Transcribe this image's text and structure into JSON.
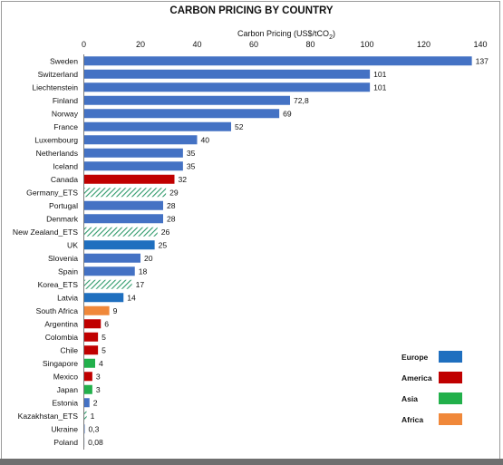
{
  "chart_data": {
    "type": "bar",
    "orientation": "horizontal",
    "title": "CARBON PRICING BY COUNTRY",
    "xlabel_main": "Carbon Pricing (US$/tCO",
    "xlabel_sub": "2",
    "xlabel_close": ")",
    "xlim": [
      0,
      140
    ],
    "xticks": [
      0,
      20,
      40,
      60,
      80,
      100,
      120,
      140
    ],
    "xaxis_position": "top",
    "grid": false,
    "legend_position": "bottom-right",
    "legend": [
      {
        "name": "Europe",
        "color": "#1f6fbf"
      },
      {
        "name": "America",
        "color": "#c00000"
      },
      {
        "name": "Asia",
        "color": "#22b04b"
      },
      {
        "name": "Africa",
        "color": "#f0883a"
      }
    ],
    "colors": {
      "europe_bar": "#4472c4",
      "uk_latvia_bar": "#1f6fbf",
      "america": "#c00000",
      "asia": "#22b04b",
      "africa": "#f0883a",
      "ets_hatch": "#2e9a6a"
    },
    "bars": [
      {
        "category": "Sweden",
        "value": 137,
        "label": "137",
        "group": "europe_bar"
      },
      {
        "category": "Switzerland",
        "value": 101,
        "label": "101",
        "group": "europe_bar"
      },
      {
        "category": "Liechtenstein",
        "value": 101,
        "label": "101",
        "group": "europe_bar"
      },
      {
        "category": "Finland",
        "value": 72.8,
        "label": "72,8",
        "group": "europe_bar"
      },
      {
        "category": "Norway",
        "value": 69,
        "label": "69",
        "group": "europe_bar"
      },
      {
        "category": "France",
        "value": 52,
        "label": "52",
        "group": "europe_bar"
      },
      {
        "category": "Luxembourg",
        "value": 40,
        "label": "40",
        "group": "europe_bar"
      },
      {
        "category": "Netherlands",
        "value": 35,
        "label": "35",
        "group": "europe_bar"
      },
      {
        "category": "Iceland",
        "value": 35,
        "label": "35",
        "group": "europe_bar"
      },
      {
        "category": "Canada",
        "value": 32,
        "label": "32",
        "group": "america"
      },
      {
        "category": "Germany_ETS",
        "value": 29,
        "label": "29",
        "group": "ets_hatch"
      },
      {
        "category": "Portugal",
        "value": 28,
        "label": "28",
        "group": "europe_bar"
      },
      {
        "category": "Denmark",
        "value": 28,
        "label": "28",
        "group": "europe_bar"
      },
      {
        "category": "New Zealand_ETS",
        "value": 26,
        "label": "26",
        "group": "ets_hatch"
      },
      {
        "category": "UK",
        "value": 25,
        "label": "25",
        "group": "uk_latvia_bar"
      },
      {
        "category": "Slovenia",
        "value": 20,
        "label": "20",
        "group": "europe_bar"
      },
      {
        "category": "Spain",
        "value": 18,
        "label": "18",
        "group": "europe_bar"
      },
      {
        "category": "Korea_ETS",
        "value": 17,
        "label": "17",
        "group": "ets_hatch"
      },
      {
        "category": "Latvia",
        "value": 14,
        "label": "14",
        "group": "uk_latvia_bar"
      },
      {
        "category": "South Africa",
        "value": 9,
        "label": "9",
        "group": "africa"
      },
      {
        "category": "Argentina",
        "value": 6,
        "label": "6",
        "group": "america"
      },
      {
        "category": "Colombia",
        "value": 5,
        "label": "5",
        "group": "america"
      },
      {
        "category": "Chile",
        "value": 5,
        "label": "5",
        "group": "america"
      },
      {
        "category": "Singapore",
        "value": 4,
        "label": "4",
        "group": "asia"
      },
      {
        "category": "Mexico",
        "value": 3,
        "label": "3",
        "group": "america"
      },
      {
        "category": "Japan",
        "value": 3,
        "label": "3",
        "group": "asia"
      },
      {
        "category": "Estonia",
        "value": 2,
        "label": "2",
        "group": "europe_bar"
      },
      {
        "category": "Kazakhstan_ETS",
        "value": 1,
        "label": "1",
        "group": "ets_hatch"
      },
      {
        "category": "Ukraine",
        "value": 0.3,
        "label": "0,3",
        "group": "europe_bar"
      },
      {
        "category": "Poland",
        "value": 0.08,
        "label": "0,08",
        "group": "europe_bar"
      }
    ]
  }
}
